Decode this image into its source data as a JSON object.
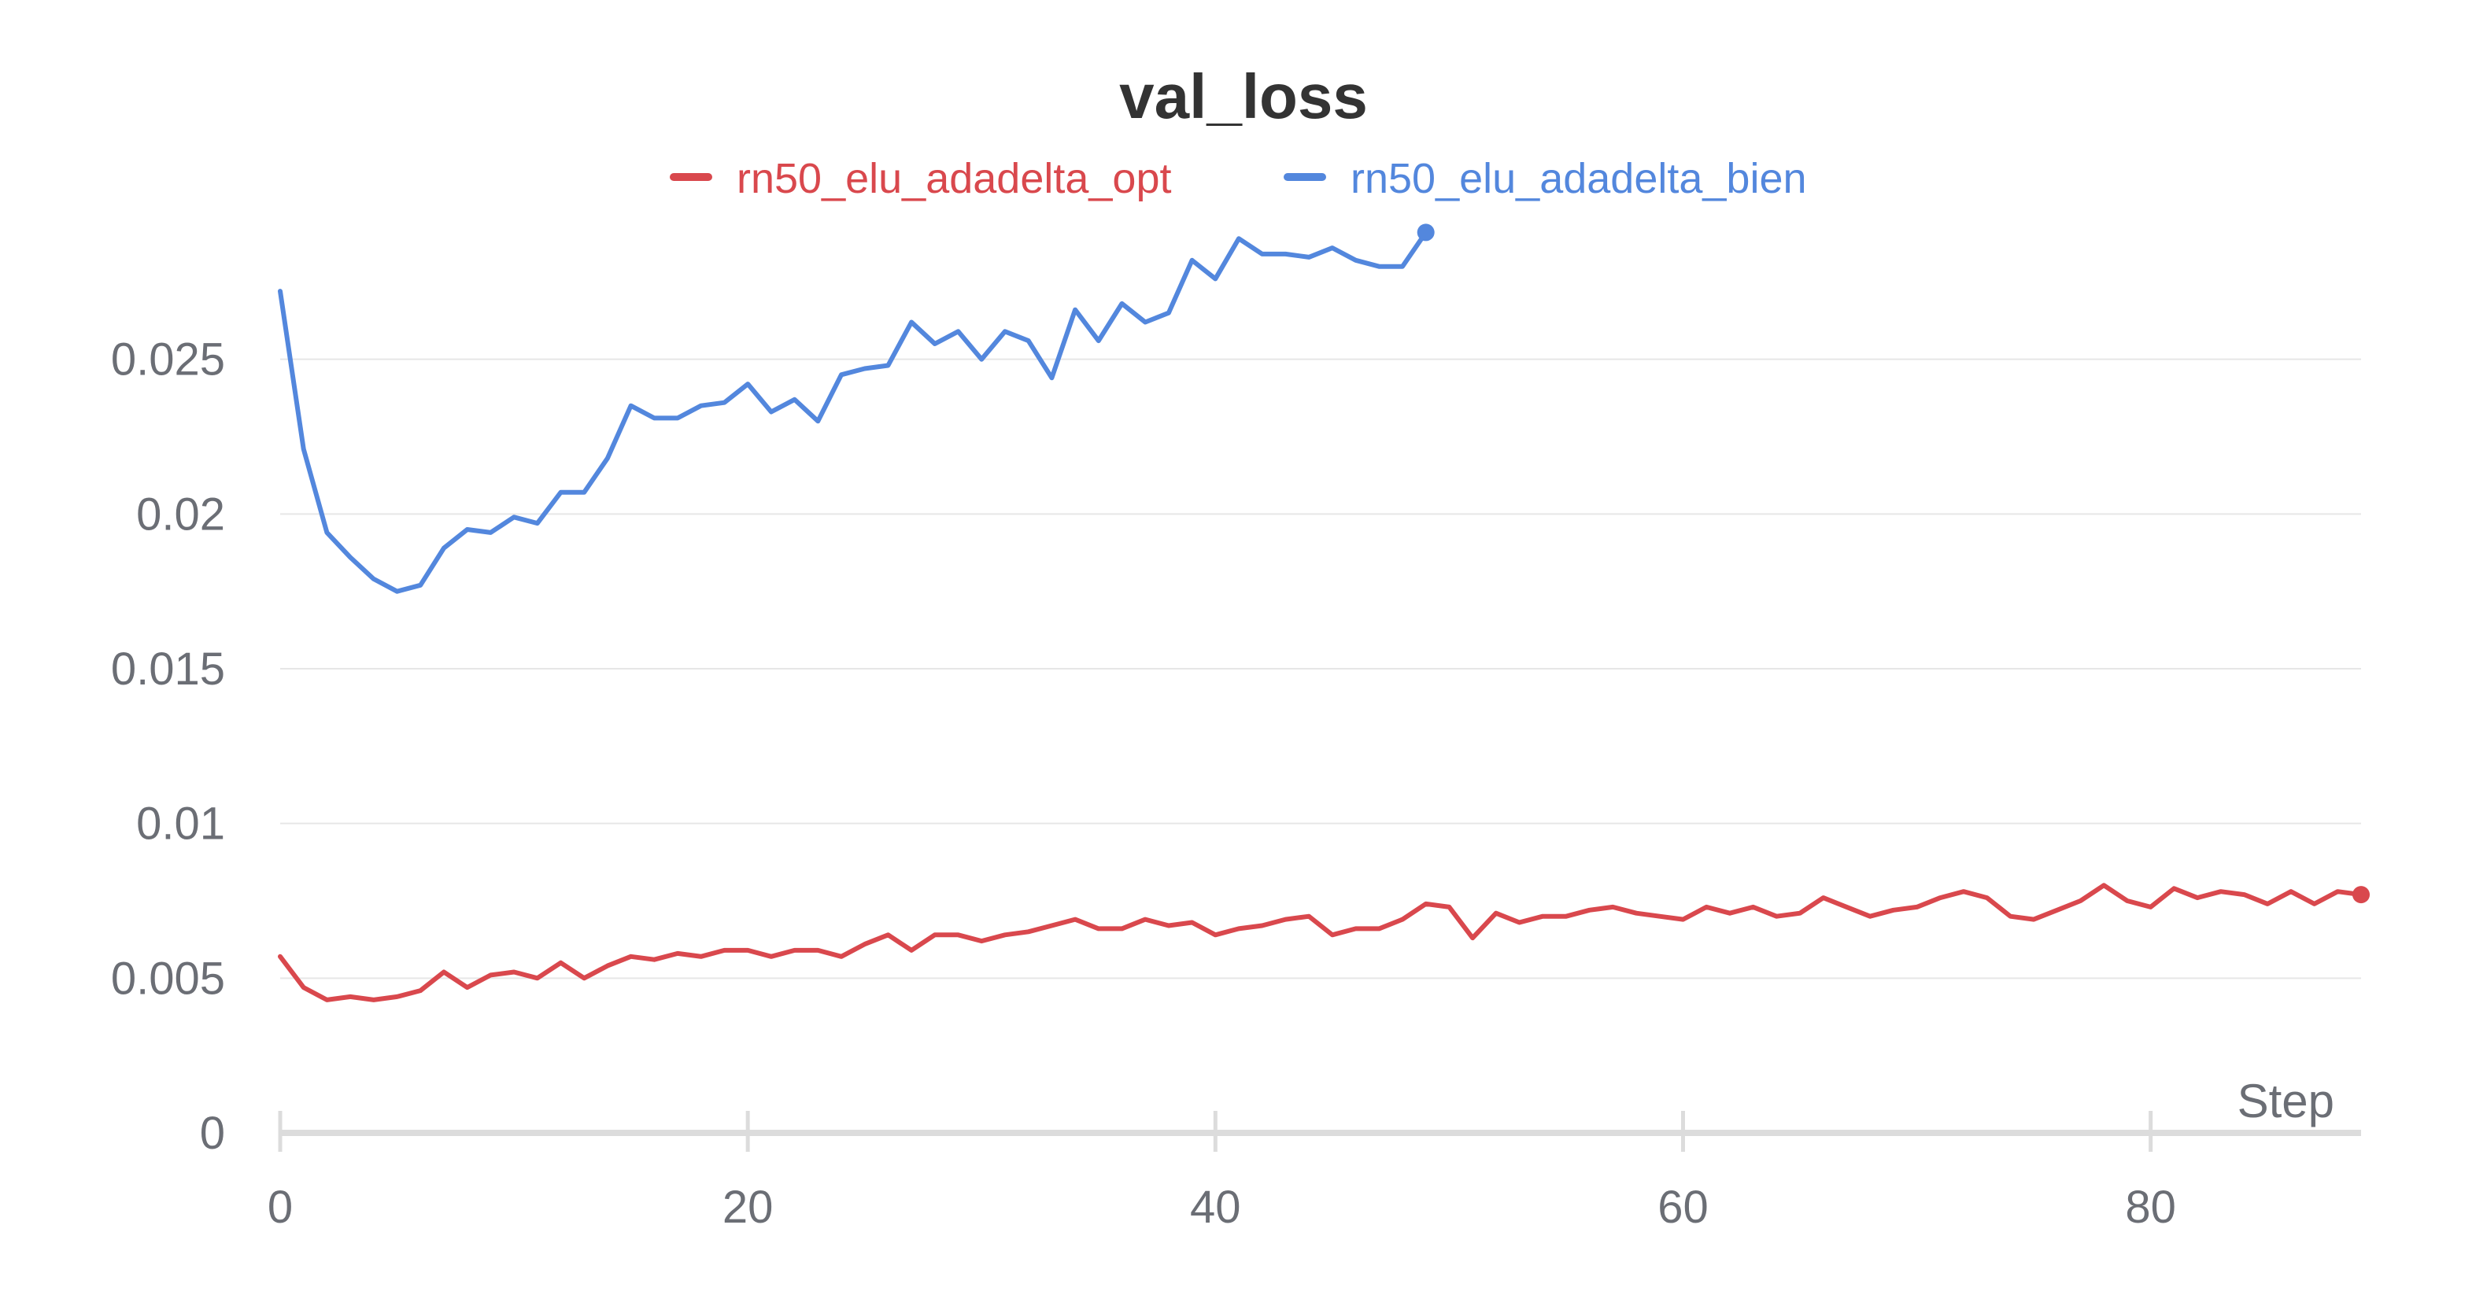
{
  "chart_data": {
    "type": "line",
    "title": "val_loss",
    "xlabel": "Step",
    "ylabel": "",
    "xlim": [
      0,
      89
    ],
    "ylim": [
      0,
      0.03
    ],
    "x_ticks": [
      0,
      20,
      40,
      60,
      80
    ],
    "x_tick_labels": [
      "0",
      "20",
      "40",
      "60",
      "80"
    ],
    "y_ticks": [
      0,
      0.005,
      0.01,
      0.015,
      0.02,
      0.025
    ],
    "y_tick_labels": [
      "0",
      "0.005",
      "0.01",
      "0.015",
      "0.02",
      "0.025"
    ],
    "grid": true,
    "legend_position": "top",
    "series": [
      {
        "name": "rn50_elu_adadelta_opt",
        "color": "#d9484d",
        "x": [
          0,
          1,
          2,
          3,
          4,
          5,
          6,
          7,
          8,
          9,
          10,
          11,
          12,
          13,
          14,
          15,
          16,
          17,
          18,
          19,
          20,
          21,
          22,
          23,
          24,
          25,
          26,
          27,
          28,
          29,
          30,
          31,
          32,
          33,
          34,
          35,
          36,
          37,
          38,
          39,
          40,
          41,
          42,
          43,
          44,
          45,
          46,
          47,
          48,
          49,
          50,
          51,
          52,
          53,
          54,
          55,
          56,
          57,
          58,
          59,
          60,
          61,
          62,
          63,
          64,
          65,
          66,
          67,
          68,
          69,
          70,
          71,
          72,
          73,
          74,
          75,
          76,
          77,
          78,
          79,
          80,
          81,
          82,
          83,
          84,
          85,
          86,
          87,
          88,
          89
        ],
        "y": [
          0.0057,
          0.0047,
          0.0043,
          0.0044,
          0.0043,
          0.0044,
          0.0046,
          0.0052,
          0.0047,
          0.0051,
          0.0052,
          0.005,
          0.0055,
          0.005,
          0.0054,
          0.0057,
          0.0056,
          0.0058,
          0.0057,
          0.0059,
          0.0059,
          0.0057,
          0.0059,
          0.0059,
          0.0057,
          0.0061,
          0.0064,
          0.0059,
          0.0064,
          0.0064,
          0.0062,
          0.0064,
          0.0065,
          0.0067,
          0.0069,
          0.0066,
          0.0066,
          0.0069,
          0.0067,
          0.0068,
          0.0064,
          0.0066,
          0.0067,
          0.0069,
          0.007,
          0.0064,
          0.0066,
          0.0066,
          0.0069,
          0.0074,
          0.0073,
          0.0063,
          0.0071,
          0.0068,
          0.007,
          0.007,
          0.0072,
          0.0073,
          0.0071,
          0.007,
          0.0069,
          0.0073,
          0.0071,
          0.0073,
          0.007,
          0.0071,
          0.0076,
          0.0073,
          0.007,
          0.0072,
          0.0073,
          0.0076,
          0.0078,
          0.0076,
          0.007,
          0.0069,
          0.0072,
          0.0075,
          0.008,
          0.0075,
          0.0073,
          0.0079,
          0.0076,
          0.0078,
          0.0077,
          0.0074,
          0.0078,
          0.0074,
          0.0078,
          0.0077
        ]
      },
      {
        "name": "rn50_elu_adadelta_bien",
        "color": "#5387dd",
        "x": [
          0,
          1,
          2,
          3,
          4,
          5,
          6,
          7,
          8,
          9,
          10,
          11,
          12,
          13,
          14,
          15,
          16,
          17,
          18,
          19,
          20,
          21,
          22,
          23,
          24,
          25,
          26,
          27,
          28,
          29,
          30,
          31,
          32,
          33,
          34,
          35,
          36,
          37,
          38,
          39,
          40,
          41,
          42,
          43,
          44,
          45,
          46,
          47,
          48,
          49
        ],
        "y": [
          0.0272,
          0.0221,
          0.0194,
          0.0186,
          0.0179,
          0.0175,
          0.0177,
          0.0189,
          0.0195,
          0.0194,
          0.0199,
          0.0197,
          0.0207,
          0.0207,
          0.0218,
          0.0235,
          0.0231,
          0.0231,
          0.0235,
          0.0236,
          0.0242,
          0.0233,
          0.0237,
          0.023,
          0.0245,
          0.0247,
          0.0248,
          0.0262,
          0.0255,
          0.0259,
          0.025,
          0.0259,
          0.0256,
          0.0244,
          0.0266,
          0.0256,
          0.0268,
          0.0262,
          0.0265,
          0.0282,
          0.0276,
          0.0289,
          0.0284,
          0.0284,
          0.0283,
          0.0286,
          0.0282,
          0.028,
          0.028,
          0.0291
        ]
      }
    ]
  }
}
